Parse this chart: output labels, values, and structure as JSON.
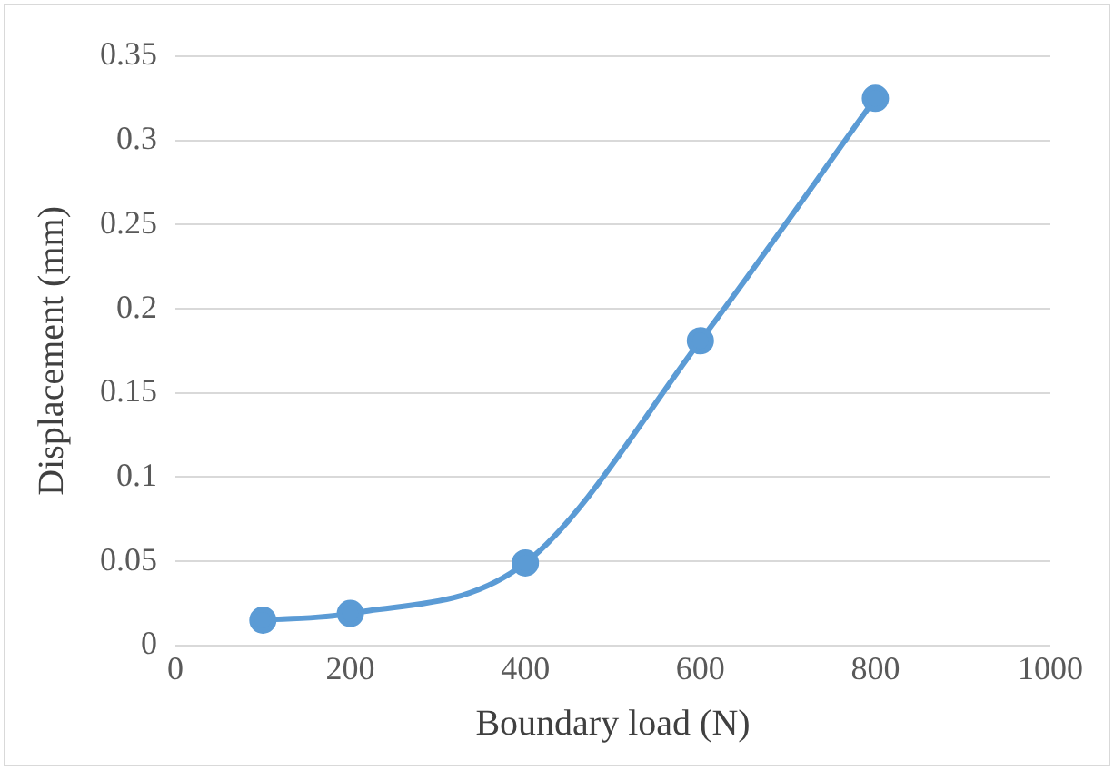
{
  "chart_data": {
    "type": "line",
    "xlabel": "Boundary load (N)",
    "ylabel": "Displacement (mm)",
    "x": [
      100,
      200,
      400,
      600,
      800
    ],
    "series": [
      {
        "color": "#5b9bd5",
        "values": [
          0.015,
          0.019,
          0.049,
          0.181,
          0.325
        ]
      }
    ],
    "xlim": [
      0,
      1000
    ],
    "xticks": [
      0,
      200,
      400,
      600,
      800,
      1000
    ],
    "ylim": [
      0,
      0.35
    ],
    "yticks": [
      0,
      0.05,
      0.1,
      0.15,
      0.2,
      0.25,
      0.3,
      0.35
    ],
    "grid": "y",
    "legend": false,
    "marker": "circle",
    "line_style": "solid"
  }
}
